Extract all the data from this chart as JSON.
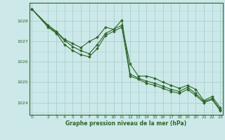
{
  "title": "Graphe pression niveau de la mer (hPa)",
  "bg_color": "#cce8e8",
  "grid_color": "#aad4d4",
  "line_color": "#2d6629",
  "ylim": [
    1023.4,
    1028.9
  ],
  "xlim": [
    -0.3,
    23.3
  ],
  "yticks": [
    1024,
    1025,
    1026,
    1027,
    1028
  ],
  "xticks": [
    0,
    2,
    3,
    4,
    5,
    6,
    7,
    8,
    9,
    10,
    11,
    12,
    13,
    14,
    15,
    16,
    17,
    18,
    19,
    20,
    21,
    22,
    23
  ],
  "series1_x": [
    0,
    2,
    3,
    4,
    5,
    6,
    7,
    8,
    9,
    10,
    11,
    12,
    13,
    14,
    15,
    16,
    17,
    18,
    19,
    20,
    21,
    22,
    23
  ],
  "series1_y": [
    1028.6,
    1027.8,
    1027.5,
    1027.1,
    1026.9,
    1026.7,
    1027.0,
    1027.2,
    1027.7,
    1027.6,
    1027.8,
    1025.9,
    1025.3,
    1025.3,
    1025.2,
    1025.0,
    1024.85,
    1024.7,
    1024.85,
    1024.65,
    1024.1,
    1024.3,
    1023.75
  ],
  "series2_x": [
    0,
    2,
    3,
    4,
    5,
    6,
    7,
    8,
    9,
    10,
    11,
    12,
    13,
    14,
    15,
    16,
    17,
    18,
    19,
    20,
    21,
    22,
    23
  ],
  "series2_y": [
    1028.6,
    1027.75,
    1027.45,
    1027.05,
    1026.75,
    1026.55,
    1026.4,
    1026.85,
    1027.4,
    1027.6,
    1028.05,
    1025.4,
    1025.2,
    1025.05,
    1024.95,
    1024.8,
    1024.65,
    1024.55,
    1024.75,
    1024.45,
    1024.05,
    1024.2,
    1023.65
  ],
  "series3_x": [
    0,
    2,
    3,
    4,
    5,
    6,
    7,
    8,
    9,
    10,
    11,
    12,
    13,
    14,
    15,
    16,
    17,
    18,
    19,
    20,
    21,
    22,
    23
  ],
  "series3_y": [
    1028.6,
    1027.7,
    1027.4,
    1026.85,
    1026.55,
    1026.35,
    1026.25,
    1026.65,
    1027.3,
    1027.5,
    1027.7,
    1025.3,
    1025.15,
    1024.95,
    1024.85,
    1024.7,
    1024.55,
    1024.45,
    1024.65,
    1024.35,
    1024.0,
    1024.15,
    1023.6
  ]
}
